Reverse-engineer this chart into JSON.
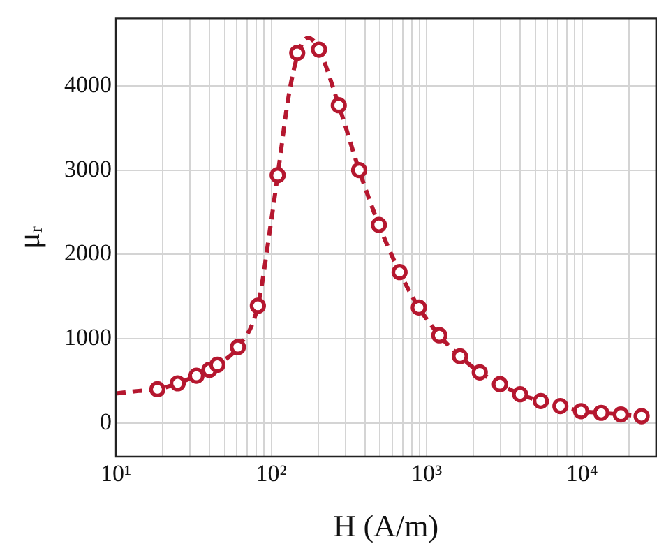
{
  "chart_data": {
    "type": "line",
    "xlabel": "H (A/m)",
    "ylabel": "μᵣ",
    "log": "x",
    "grid": true,
    "legend": false,
    "xlim": [
      10,
      30000
    ],
    "ylim": [
      -400,
      4800
    ],
    "xticks": [
      {
        "value": 10,
        "label": "10¹"
      },
      {
        "value": 20,
        "label": null
      },
      {
        "value": 30,
        "label": null
      },
      {
        "value": 40,
        "label": null
      },
      {
        "value": 50,
        "label": null
      },
      {
        "value": 60,
        "label": null
      },
      {
        "value": 70,
        "label": null
      },
      {
        "value": 80,
        "label": null
      },
      {
        "value": 90,
        "label": null
      },
      {
        "value": 100,
        "label": "10²"
      },
      {
        "value": 200,
        "label": null
      },
      {
        "value": 300,
        "label": null
      },
      {
        "value": 400,
        "label": null
      },
      {
        "value": 500,
        "label": null
      },
      {
        "value": 600,
        "label": null
      },
      {
        "value": 700,
        "label": null
      },
      {
        "value": 800,
        "label": null
      },
      {
        "value": 900,
        "label": null
      },
      {
        "value": 1000,
        "label": "10³"
      },
      {
        "value": 2000,
        "label": null
      },
      {
        "value": 3000,
        "label": null
      },
      {
        "value": 4000,
        "label": null
      },
      {
        "value": 5000,
        "label": null
      },
      {
        "value": 6000,
        "label": null
      },
      {
        "value": 7000,
        "label": null
      },
      {
        "value": 8000,
        "label": null
      },
      {
        "value": 9000,
        "label": null
      },
      {
        "value": 10000,
        "label": "10⁴"
      },
      {
        "value": 20000,
        "label": null
      }
    ],
    "yticks": [
      0,
      1000,
      2000,
      3000,
      4000
    ],
    "series": [
      {
        "color": "#b5172f",
        "line_style": "dashed",
        "marker": "none",
        "x": [
          10,
          14,
          18.5,
          25,
          33,
          40,
          45,
          61,
          82,
          100,
          110,
          130,
          150,
          173,
          203,
          272,
          368,
          493,
          670,
          891,
          1208,
          1641,
          2198,
          2965,
          4000,
          5430,
          7260,
          9860,
          13300,
          17800,
          24200
        ],
        "values": [
          350,
          380,
          400,
          470,
          560,
          630,
          690,
          900,
          1390,
          2400,
          2940,
          3900,
          4400,
          4570,
          4430,
          3770,
          3000,
          2350,
          1790,
          1370,
          1040,
          790,
          600,
          460,
          340,
          260,
          200,
          140,
          120,
          100,
          80
        ]
      },
      {
        "type": "scatter",
        "color": "#b5172f",
        "marker": "circle",
        "x": [
          18.5,
          25,
          33,
          40,
          45,
          61,
          82,
          110,
          147,
          203,
          272,
          368,
          493,
          670,
          891,
          1208,
          1641,
          2198,
          2965,
          4000,
          5430,
          7260,
          9860,
          13300,
          17800,
          24200
        ],
        "values": [
          400,
          470,
          560,
          630,
          690,
          900,
          1390,
          2940,
          4390,
          4430,
          3770,
          3000,
          2350,
          1790,
          1370,
          1040,
          790,
          600,
          460,
          340,
          260,
          200,
          140,
          120,
          100,
          80
        ]
      }
    ]
  }
}
